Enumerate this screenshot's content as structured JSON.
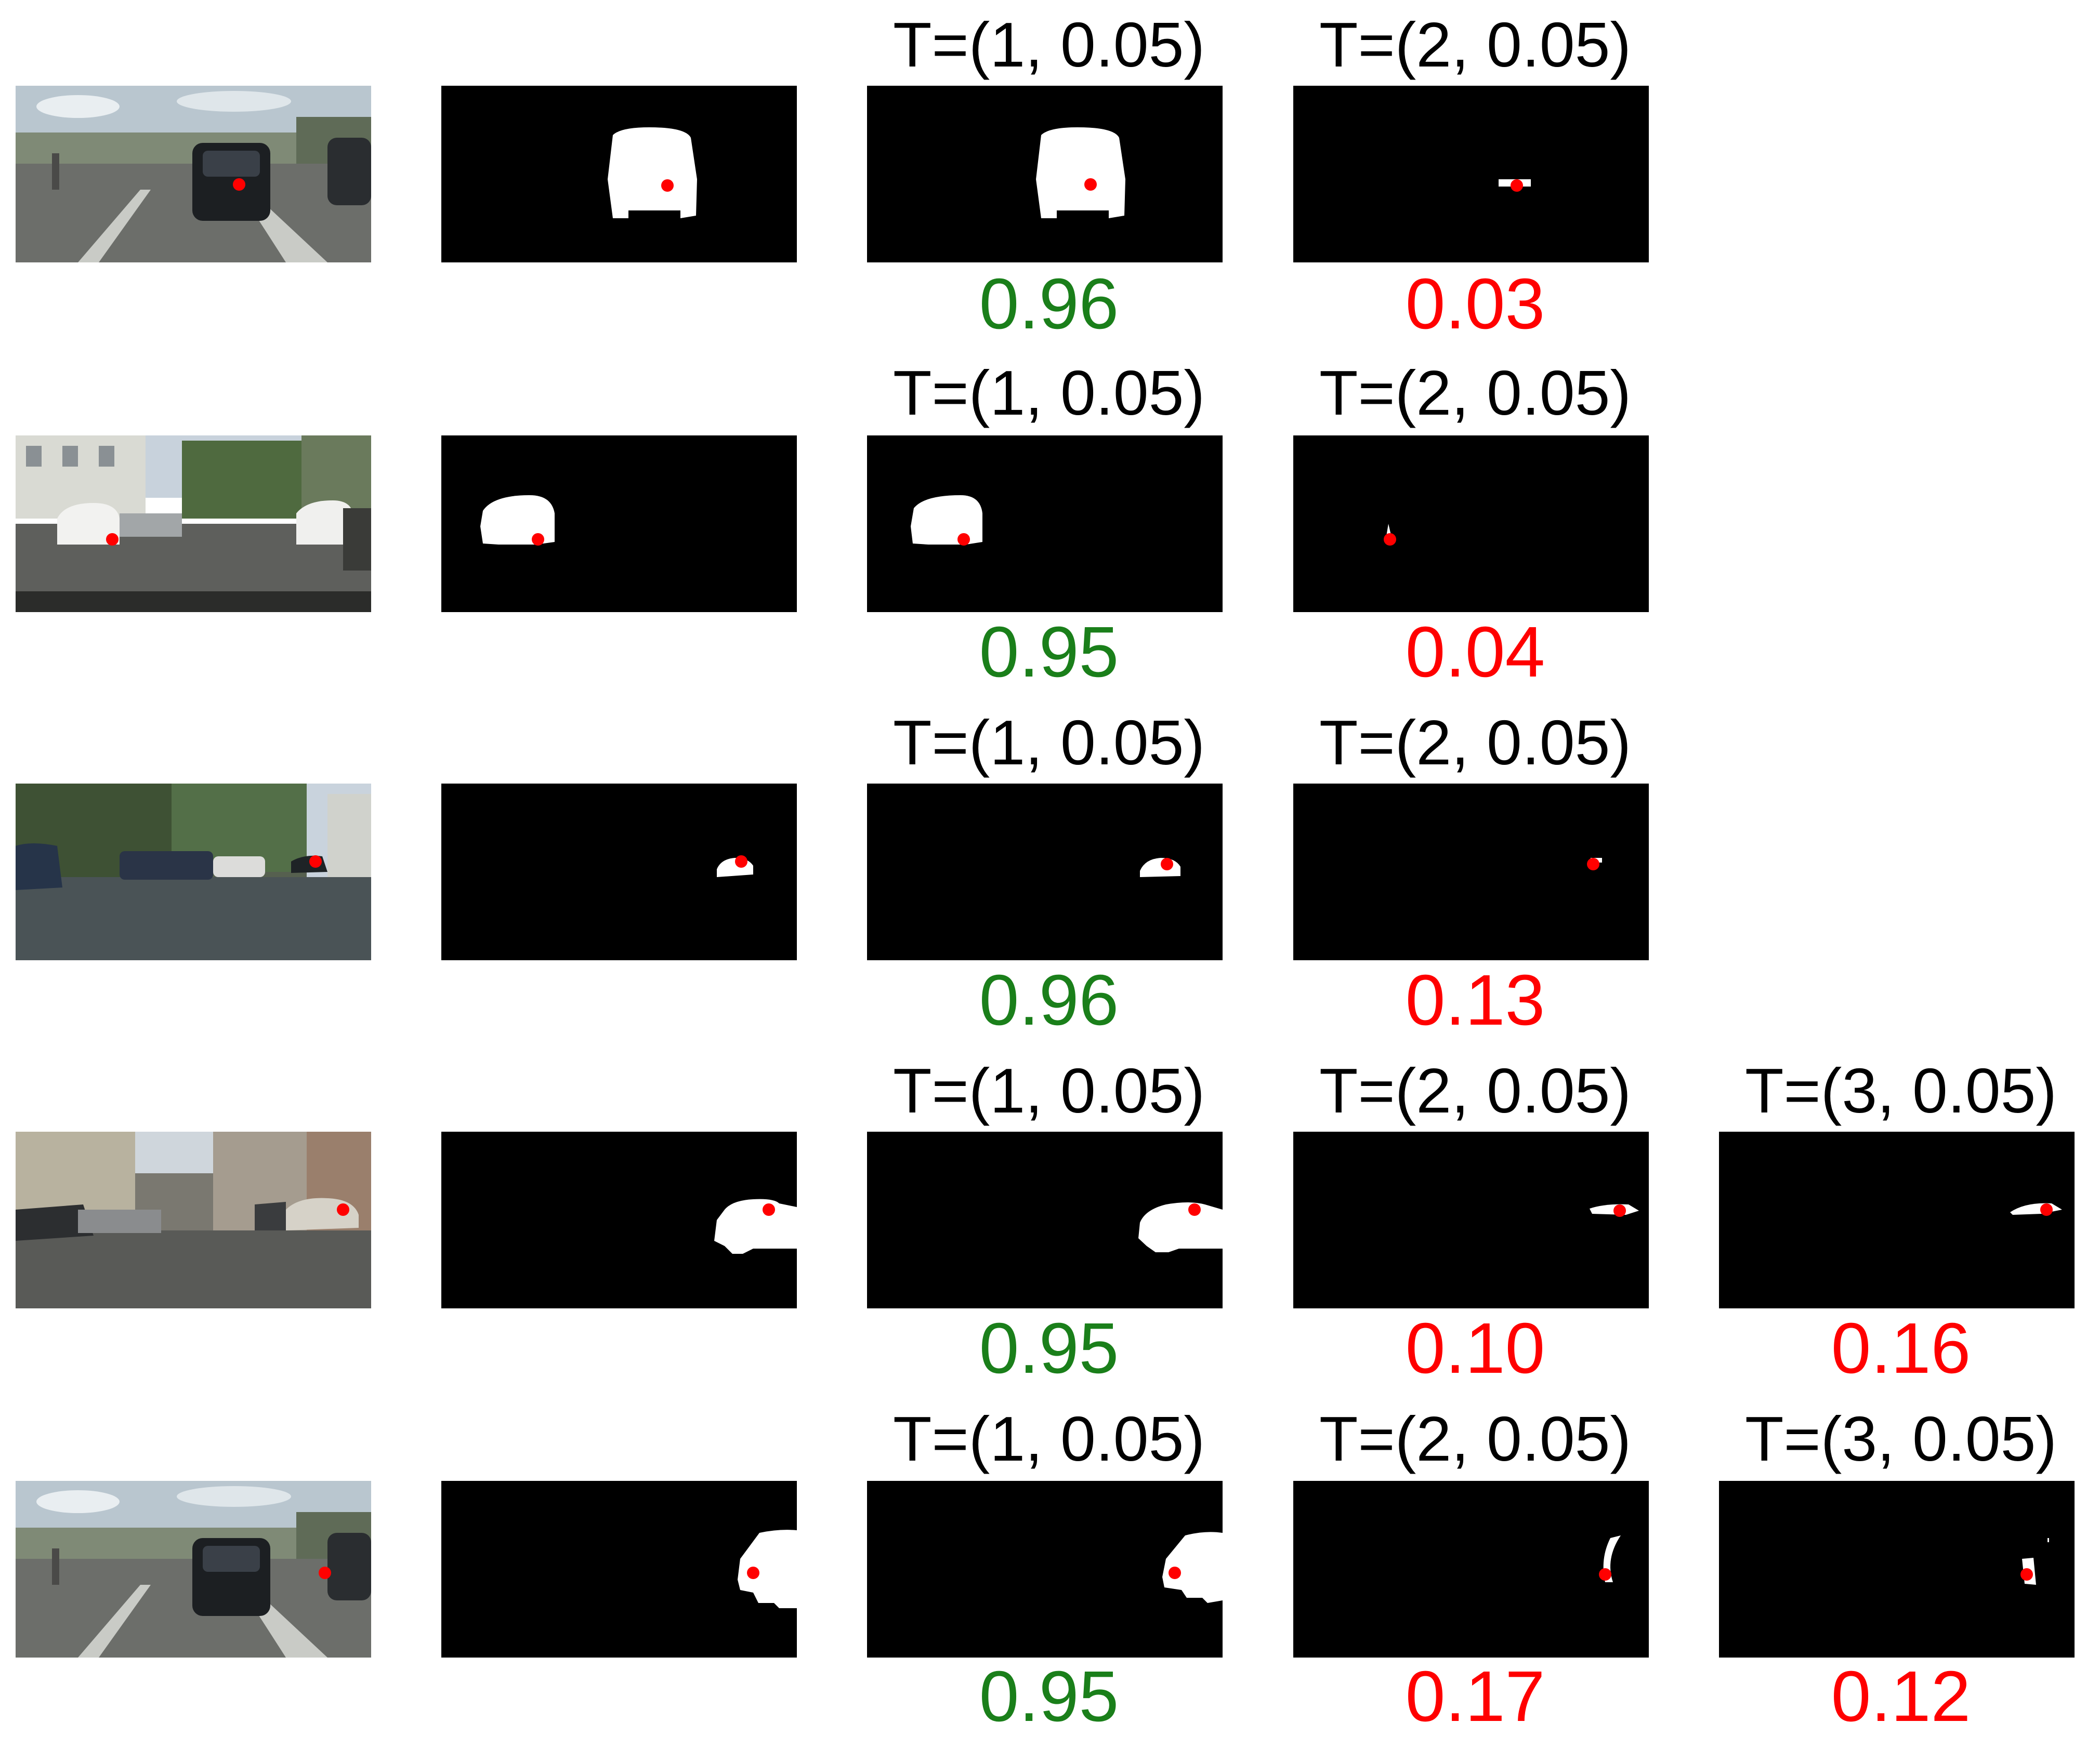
{
  "rows": [
    {
      "cells": [
        {
          "label": "T=(1, 0.05)",
          "score": "0.96"
        },
        {
          "label": "T=(2, 0.05)",
          "score": "0.03"
        }
      ]
    },
    {
      "cells": [
        {
          "label": "T=(1, 0.05)",
          "score": "0.95"
        },
        {
          "label": "T=(2, 0.05)",
          "score": "0.04"
        }
      ]
    },
    {
      "cells": [
        {
          "label": "T=(1, 0.05)",
          "score": "0.96"
        },
        {
          "label": "T=(2, 0.05)",
          "score": "0.13"
        }
      ]
    },
    {
      "cells": [
        {
          "label": "T=(1, 0.05)",
          "score": "0.95"
        },
        {
          "label": "T=(2, 0.05)",
          "score": "0.10"
        },
        {
          "label": "T=(3, 0.05)",
          "score": "0.16"
        }
      ]
    },
    {
      "cells": [
        {
          "label": "T=(1, 0.05)",
          "score": "0.95"
        },
        {
          "label": "T=(2, 0.05)",
          "score": "0.17"
        },
        {
          "label": "T=(3, 0.05)",
          "score": "0.12"
        }
      ]
    }
  ],
  "colors": {
    "good_score": "#1a7f1a",
    "bad_score": "#ff0000",
    "click_point": "#ff0000",
    "mask_background": "#000000",
    "mask_foreground": "#ffffff"
  }
}
